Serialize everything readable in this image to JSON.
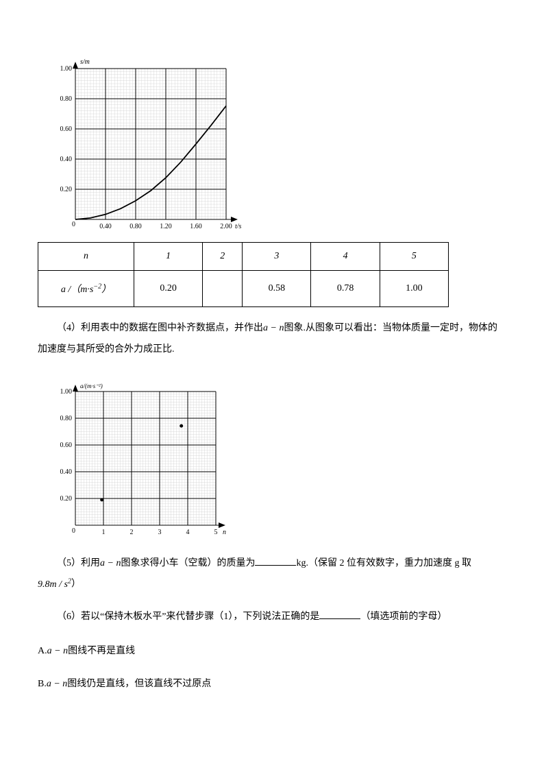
{
  "chart1": {
    "type": "line-on-grid",
    "y_label": "s/m",
    "x_label": "t/s",
    "y_ticks": [
      "0.20",
      "0.40",
      "0.60",
      "0.80",
      "1.00"
    ],
    "x_ticks": [
      "0.40",
      "0.80",
      "1.20",
      "1.60",
      "2.00"
    ],
    "xlim": [
      0,
      2.0
    ],
    "ylim": [
      0,
      1.05
    ],
    "line_color": "#000000",
    "major_grid_color": "#000000",
    "minor_grid_color": "#d0d0d0",
    "background_color": "#ffffff",
    "tick_fontsize": 10,
    "label_fontsize": 10,
    "curve_points": [
      [
        0,
        0
      ],
      [
        0.2,
        0.01
      ],
      [
        0.4,
        0.035
      ],
      [
        0.6,
        0.075
      ],
      [
        0.8,
        0.13
      ],
      [
        1.0,
        0.2
      ],
      [
        1.2,
        0.29
      ],
      [
        1.4,
        0.4
      ],
      [
        1.6,
        0.525
      ],
      [
        1.8,
        0.655
      ],
      [
        2.0,
        0.79
      ]
    ]
  },
  "table": {
    "headers": [
      "n",
      "1",
      "2",
      "3",
      "4",
      "5"
    ],
    "row_label_html": "a /（m·s⁻²）",
    "values": [
      "0.20",
      "",
      "0.58",
      "0.78",
      "1.00"
    ]
  },
  "q4": {
    "text_pre": "（4）利用表中的数据在图中补齐数据点，并作出",
    "math": "a − n",
    "text_post": "图象.从图象可以看出：当物体质量一定时，物体的加速度与其所受的合外力成正比."
  },
  "chart2": {
    "type": "scatter-on-grid",
    "y_label": "a/(m·s⁻²)",
    "x_label": "n",
    "y_ticks": [
      "0.20",
      "0.40",
      "0.60",
      "0.80",
      "1.00"
    ],
    "x_ticks": [
      "1",
      "2",
      "3",
      "4",
      "5"
    ],
    "xlim": [
      0,
      5.3
    ],
    "ylim": [
      0,
      1.05
    ],
    "point_color": "#000000",
    "major_grid_color": "#000000",
    "minor_grid_color": "#d0d0d0",
    "tick_fontsize": 10,
    "label_fontsize": 10,
    "points": [
      [
        1,
        0.2
      ],
      [
        4,
        0.78
      ]
    ],
    "marker_radius": 2.5
  },
  "q5": {
    "text_pre": "（5）利用",
    "math": "a − n",
    "text_mid": "图象求得小车（空载）的质量为",
    "text_post": "kg.（保留 2 位有效数字，重力加速度 g 取",
    "g_value": "9.8m / s²",
    "end": "）"
  },
  "q6": {
    "text": "（6）若以“保持木板水平”来代替步骤（1），下列说法正确的是",
    "tail": "（填选项前的字母）"
  },
  "options": {
    "A": {
      "prefix": "A.",
      "math": "a − n",
      "text": "图线不再是直线"
    },
    "B": {
      "prefix": "B.",
      "math": "a − n",
      "text": "图线仍是直线，但该直线不过原点"
    }
  }
}
